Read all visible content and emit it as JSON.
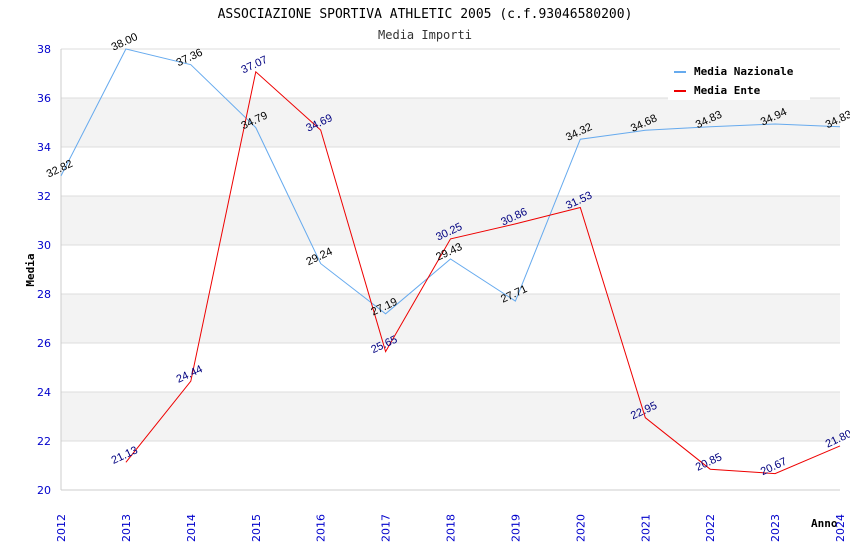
{
  "chart_data": {
    "type": "line",
    "title": "ASSOCIAZIONE SPORTIVA ATHLETIC 2005 (c.f.93046580200)",
    "subtitle": "Media Importi",
    "xlabel": "Anno",
    "ylabel": "Media",
    "ylim": [
      20,
      38
    ],
    "yticks": [
      "20",
      "22",
      "24",
      "26",
      "28",
      "30",
      "32",
      "34",
      "36",
      "38"
    ],
    "categories": [
      "2012",
      "2013",
      "2014",
      "2015",
      "2016",
      "2017",
      "2018",
      "2019",
      "2020",
      "2021",
      "2022",
      "2023",
      "2024"
    ],
    "legend_position": "top-right",
    "series": [
      {
        "name": "Media Nazionale",
        "color": "#66aaee",
        "label_color": "#000000",
        "values": [
          32.82,
          38.0,
          37.36,
          34.79,
          29.24,
          27.19,
          29.43,
          27.71,
          34.32,
          34.68,
          34.83,
          34.94,
          34.83
        ],
        "labels": [
          "32.82",
          "38.00",
          "37.36",
          "34.79",
          "29.24",
          "27.19",
          "29.43",
          "27.71",
          "34.32",
          "34.68",
          "34.83",
          "34.94",
          "34.83"
        ]
      },
      {
        "name": "Media Ente",
        "color": "#ee0000",
        "label_color": "#000080",
        "values": [
          null,
          21.13,
          24.44,
          37.07,
          34.69,
          25.65,
          30.25,
          30.86,
          31.53,
          22.95,
          20.85,
          20.67,
          21.8
        ],
        "labels": [
          null,
          "21.13",
          "24.44",
          "37.07",
          "34.69",
          "25.65",
          "30.25",
          "30.86",
          "31.53",
          "22.95",
          "20.85",
          "20.67",
          "21.80"
        ]
      }
    ]
  }
}
